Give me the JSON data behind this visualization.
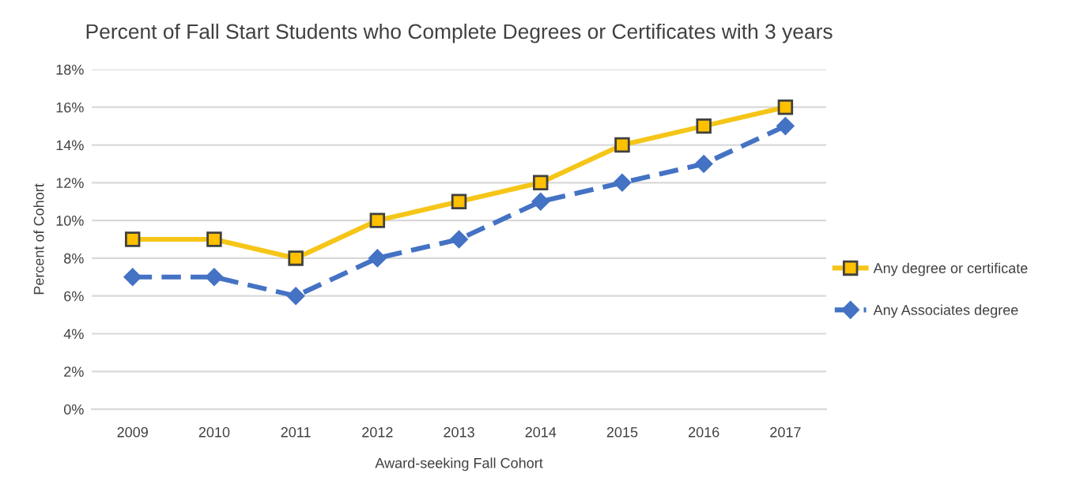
{
  "chart_data": {
    "type": "line",
    "title": "Percent of Fall Start Students who Complete Degrees or Certificates with 3 years",
    "xlabel": "Award-seeking Fall Cohort",
    "ylabel": "Percent of Cohort",
    "categories": [
      "2009",
      "2010",
      "2011",
      "2012",
      "2013",
      "2014",
      "2015",
      "2016",
      "2017"
    ],
    "series": [
      {
        "name": "Any degree or certificate",
        "color": "#f5c518",
        "values": [
          9,
          9,
          8,
          10,
          11,
          12,
          14,
          15,
          16
        ],
        "marker": "square",
        "line_style": "solid"
      },
      {
        "name": "Any Associates degree",
        "color": "#4472c4",
        "values": [
          7,
          7,
          6,
          8,
          9,
          11,
          12,
          13,
          15
        ],
        "marker": "diamond",
        "line_style": "dashed"
      }
    ],
    "ylim": [
      0,
      18
    ],
    "yticks": [
      {
        "value": 0,
        "label": "0%"
      },
      {
        "value": 2,
        "label": "2%"
      },
      {
        "value": 4,
        "label": "4%"
      },
      {
        "value": 6,
        "label": "6%"
      },
      {
        "value": 8,
        "label": "8%"
      },
      {
        "value": 10,
        "label": "10%"
      },
      {
        "value": 12,
        "label": "12%"
      },
      {
        "value": 14,
        "label": "14%"
      },
      {
        "value": 16,
        "label": "16%"
      },
      {
        "value": 18,
        "label": "18%"
      }
    ],
    "grid": "y",
    "legend": "right"
  }
}
